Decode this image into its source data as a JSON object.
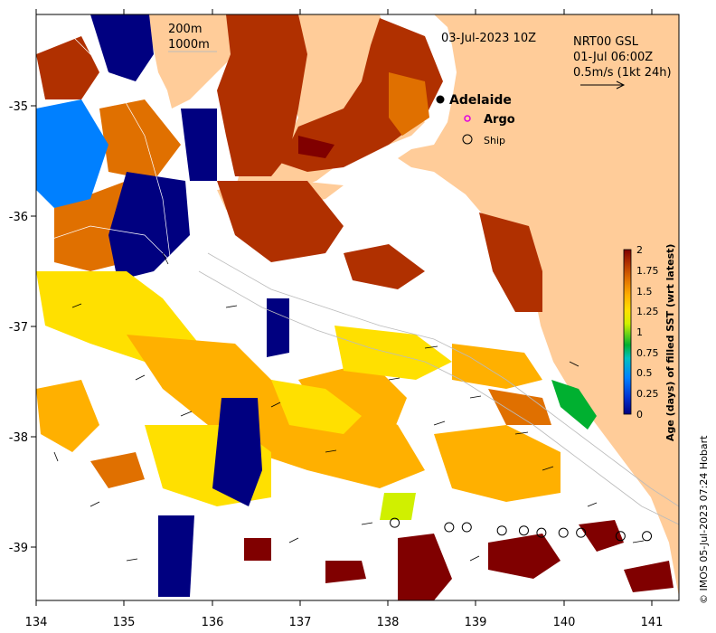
{
  "map": {
    "date_label": "03-Jul-2023 10Z",
    "product_label": "NRT00 GSL",
    "product_time": "01-Jul 06:00Z",
    "velocity_scale": "0.5m/s (1kt 24h)",
    "isobath_shallow": "200m",
    "isobath_deep": "1000m",
    "x_ticks": [
      "134",
      "135",
      "136",
      "137",
      "138",
      "139",
      "140",
      "141"
    ],
    "y_ticks": [
      "-35",
      "-36",
      "-37",
      "-38",
      "-39"
    ],
    "credit": "© IMOS 05-Jul-2023 07:24 Hobart",
    "land_color": "#ffcc99",
    "ocean_color": "#ffffff"
  },
  "legend": {
    "adelaide": "Adelaide",
    "argo": "Argo",
    "ship": "Ship"
  },
  "colorbar": {
    "title": "Age (days) of filled SST (wrt latest)",
    "ticks": [
      "2",
      "1.75",
      "1.5",
      "1.25",
      "1",
      "0.75",
      "0.5",
      "0.25",
      "0"
    ],
    "colors": [
      "#000080",
      "#0030d0",
      "#0080ff",
      "#00c0c0",
      "#00b030",
      "#d0f000",
      "#ffe000",
      "#ffb000",
      "#e07000",
      "#b03000",
      "#800000"
    ]
  },
  "ship_track": [
    {
      "lon": 138.08,
      "lat": -38.78
    },
    {
      "lon": 138.7,
      "lat": -38.82
    },
    {
      "lon": 138.9,
      "lat": -38.82
    },
    {
      "lon": 139.3,
      "lat": -38.85
    },
    {
      "lon": 139.55,
      "lat": -38.85
    },
    {
      "lon": 139.75,
      "lat": -38.87
    },
    {
      "lon": 140.0,
      "lat": -38.87
    },
    {
      "lon": 140.2,
      "lat": -38.87
    },
    {
      "lon": 140.65,
      "lat": -38.9
    },
    {
      "lon": 140.95,
      "lat": -38.9
    }
  ]
}
